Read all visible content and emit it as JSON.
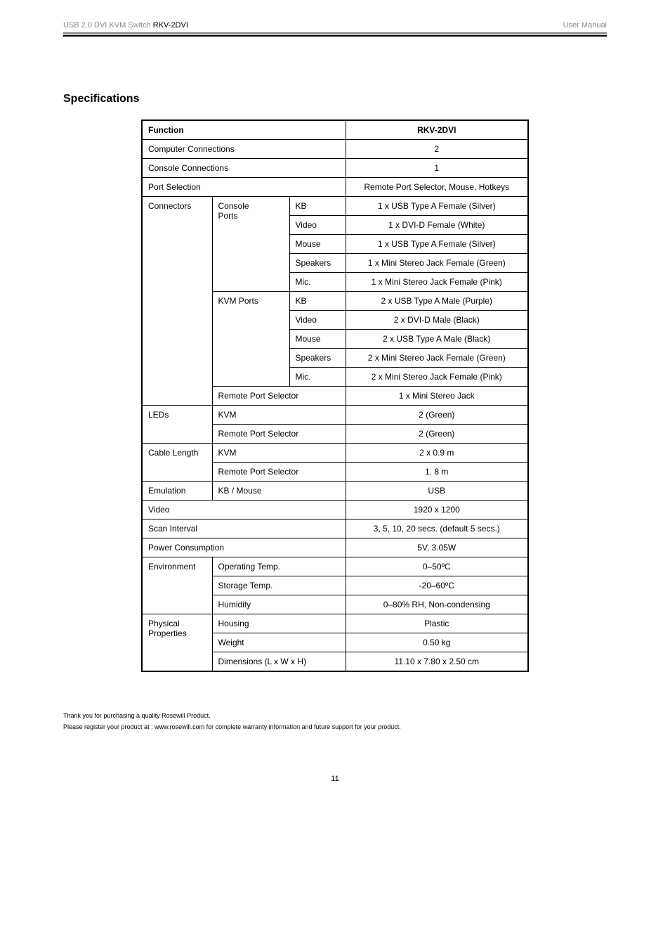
{
  "header": {
    "left_prefix": "USB 2.0 DVI KVM Switch ",
    "model": "RKV-2DVI",
    "right": "User Manual"
  },
  "title": "Specifications",
  "table": {
    "header_left": "Function",
    "header_right": "RKV-2DVI",
    "rows": {
      "computer_connections": {
        "label": "Computer Connections",
        "value": "2"
      },
      "console_connections": {
        "label": "Console Connections",
        "value": "1"
      },
      "port_selection": {
        "label": "Port Selection",
        "value": "Remote Port Selector, Mouse, Hotkeys"
      },
      "connectors": {
        "label": "Connectors",
        "console_ports": {
          "label": "Console Ports",
          "kb": {
            "label": "KB",
            "value": "1 x USB Type A Female (Silver)"
          },
          "video": {
            "label": "Video",
            "value": "1 x DVI-D Female (White)"
          },
          "mouse": {
            "label": "Mouse",
            "value": "1 x USB Type A Female (Silver)"
          },
          "speakers": {
            "label": "Speakers",
            "value": "1 x Mini Stereo Jack Female (Green)"
          },
          "mic": {
            "label": "Mic.",
            "value": "1 x Mini Stereo Jack Female (Pink)"
          }
        },
        "kvm_ports": {
          "label": "KVM Ports",
          "kb": {
            "label": "KB",
            "value": "2 x USB Type A Male (Purple)"
          },
          "video": {
            "label": "Video",
            "value": "2 x DVI-D Male (Black)"
          },
          "mouse": {
            "label": "Mouse",
            "value": "2 x USB Type A Male (Black)"
          },
          "speakers": {
            "label": "Speakers",
            "value": "2 x Mini Stereo Jack Female (Green)"
          },
          "mic": {
            "label": "Mic.",
            "value": "2 x Mini Stereo Jack Female (Pink)"
          }
        },
        "remote_port_selector": {
          "label": "Remote Port Selector",
          "value": "1 x Mini Stereo Jack"
        }
      },
      "leds": {
        "label": "LEDs",
        "kvm": {
          "label": "KVM",
          "value": "2 (Green)"
        },
        "rps": {
          "label": "Remote Port Selector",
          "value": "2 (Green)"
        }
      },
      "cable_length": {
        "label": "Cable Length",
        "kvm": {
          "label": "KVM",
          "value": "2 x 0.9 m"
        },
        "rps": {
          "label": "Remote Port Selector",
          "value": "1. 8 m"
        }
      },
      "emulation": {
        "label": "Emulation",
        "sub": "KB / Mouse",
        "value": "USB"
      },
      "video": {
        "label": "Video",
        "value": "1920 x 1200"
      },
      "scan_interval": {
        "label": "Scan Interval",
        "value": "3, 5, 10, 20 secs. (default 5 secs.)"
      },
      "power_consumption": {
        "label": "Power Consumption",
        "value": "5V, 3.05W"
      },
      "environment": {
        "label": "Environment",
        "op_temp": {
          "label": "Operating Temp.",
          "value": "0–50ºC"
        },
        "storage_temp": {
          "label": "Storage Temp.",
          "value": "-20–60ºC"
        },
        "humidity": {
          "label": "Humidity",
          "value": "0–80% RH, Non-condensing"
        }
      },
      "physical": {
        "label": "Physical Properties",
        "housing": {
          "label": "Housing",
          "value": "Plastic"
        },
        "weight": {
          "label": "Weight",
          "value": "0.50 kg"
        },
        "dimensions": {
          "label": "Dimensions (L x W x H)",
          "value": "11.10 x 7.80 x 2.50 cm"
        }
      }
    }
  },
  "footer": {
    "line1": "Thank you for purchasing a quality Rosewill Product.",
    "line2": "Please register your product at : www.rosewill.com for complete warranty information and future support for your product."
  },
  "page_number": "11"
}
